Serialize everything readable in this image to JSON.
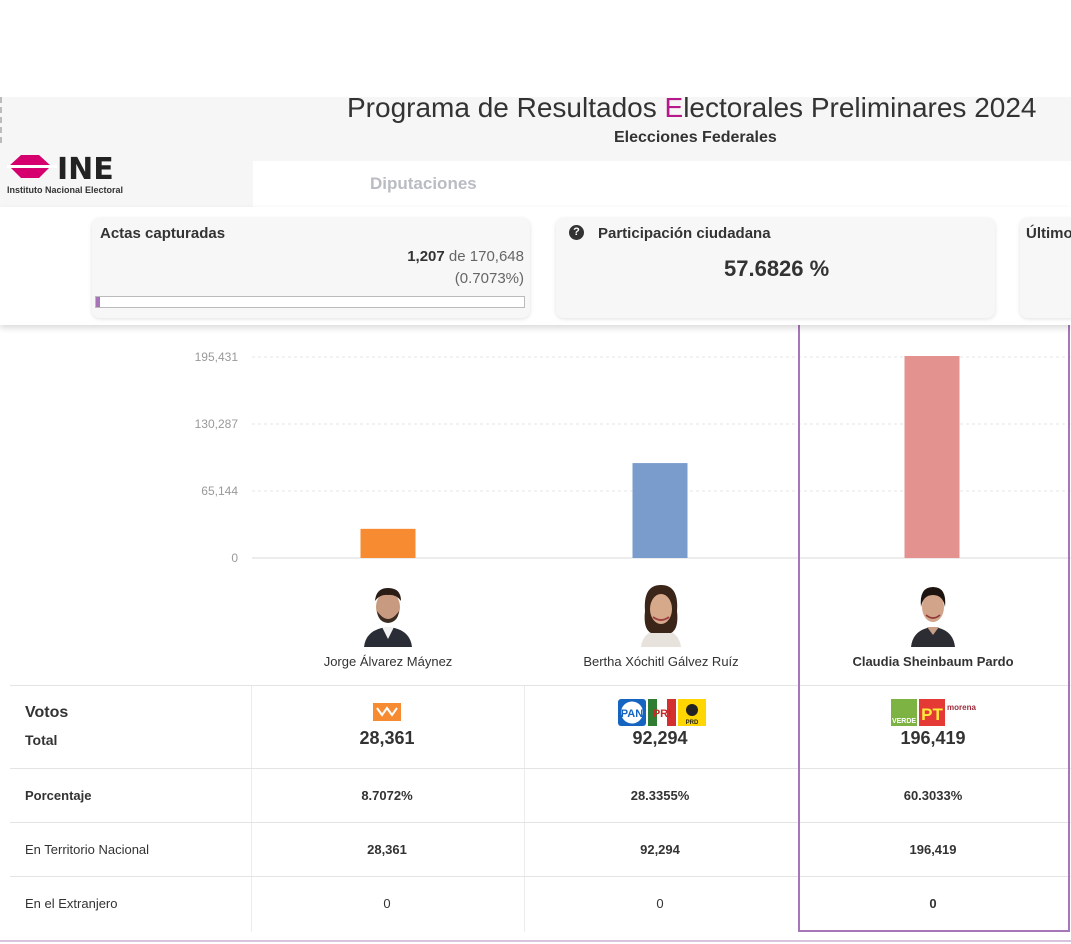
{
  "header": {
    "title_prefix": "Programa de Resultados ",
    "title_letter": "E",
    "title_suffix": "lectorales Preliminares 2024",
    "subtitle": "Elecciones Federales",
    "logo_text": "INE",
    "logo_caption": "Instituto Nacional Electoral",
    "nav_tab": "Diputaciones"
  },
  "stats": {
    "actas_label": "Actas capturadas",
    "actas_captured": "1,207",
    "actas_of": "de",
    "actas_total": "170,648",
    "actas_percent": "(0.7073%)",
    "actas_progress_fraction": 0.007073,
    "participation_label": "Participación ciudadana",
    "participation_value": "57.6826 %",
    "last_label": "Último"
  },
  "chart_data": {
    "type": "bar",
    "categories": [
      "Jorge Álvarez Máynez",
      "Bertha Xóchitl Gálvez Ruíz",
      "Claudia Sheinbaum Pardo"
    ],
    "values": [
      28361,
      92294,
      196419
    ],
    "colors": [
      "#f68b32",
      "#799ccc",
      "#e39290"
    ],
    "y_ticks": [
      "195,431",
      "130,287",
      "65,144",
      "0"
    ],
    "y_tick_values": [
      195431,
      130287,
      65144,
      0
    ],
    "ylim": [
      0,
      195431
    ]
  },
  "candidates": [
    {
      "name": "Jorge Álvarez Máynez",
      "highlight": false
    },
    {
      "name": "Bertha Xóchitl Gálvez Ruíz",
      "highlight": false
    },
    {
      "name": "Claudia Sheinbaum Pardo",
      "highlight": true
    }
  ],
  "table": {
    "votos_label": "Votos",
    "total_label": "Total",
    "totals": [
      "28,361",
      "92,294",
      "196,419"
    ],
    "porcentaje_label": "Porcentaje",
    "porcentajes": [
      "8.7072%",
      "28.3355%",
      "60.3033%"
    ],
    "territorio_label": "En Territorio Nacional",
    "territorio": [
      "28,361",
      "92,294",
      "196,419"
    ],
    "extranjero_label": "En el Extranjero",
    "extranjero": [
      "0",
      "0",
      "0"
    ]
  },
  "parties": {
    "pan": "PAN",
    "prd": "PRD",
    "pri": "PRI",
    "verde": "VERDE",
    "pt": "PT",
    "morena": "morena"
  },
  "colors": {
    "accent": "#b5198b",
    "highlight_border": "#a776b8",
    "ine_magenta": "#d5006d"
  }
}
